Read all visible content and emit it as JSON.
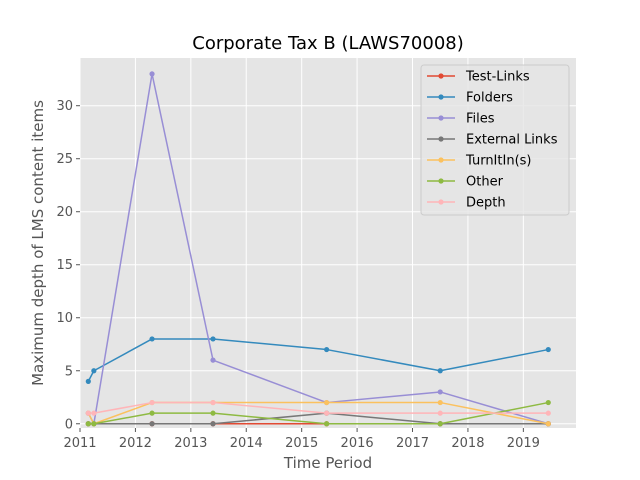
{
  "chart_data": {
    "type": "line",
    "title": "Corporate Tax B (LAWS70008)",
    "xlabel": "Time Period",
    "ylabel": "Maximum depth of LMS content items",
    "xlim": [
      2011.0,
      2019.95
    ],
    "ylim": [
      -0.4,
      34.5
    ],
    "xticks": [
      2011,
      2012,
      2013,
      2014,
      2015,
      2016,
      2017,
      2018,
      2019
    ],
    "yticks": [
      0,
      5,
      10,
      15,
      20,
      25,
      30
    ],
    "grid": true,
    "legend_position": "upper right",
    "x": [
      2011.15,
      2011.25,
      2012.3,
      2013.4,
      2015.45,
      2017.5,
      2019.45
    ],
    "series": [
      {
        "name": "Test-Links",
        "color": "#E24A33",
        "values": [
          0,
          0,
          0,
          0,
          0,
          0,
          0
        ]
      },
      {
        "name": "Folders",
        "color": "#348ABD",
        "values": [
          4,
          5,
          8,
          8,
          7,
          5,
          7
        ]
      },
      {
        "name": "Files",
        "color": "#988ED5",
        "values": [
          1,
          0,
          33,
          6,
          2,
          3,
          0
        ]
      },
      {
        "name": "External Links",
        "color": "#777777",
        "values": [
          0,
          0,
          0,
          0,
          1,
          0,
          0
        ]
      },
      {
        "name": "TurnItIn(s)",
        "color": "#FBC15E",
        "values": [
          1,
          0,
          2,
          2,
          2,
          2,
          0
        ]
      },
      {
        "name": "Other",
        "color": "#8EBA42",
        "values": [
          0,
          0,
          1,
          1,
          0,
          0,
          2
        ]
      },
      {
        "name": "Depth",
        "color": "#FFB5B8",
        "values": [
          1,
          1,
          2,
          2,
          1,
          1,
          1
        ]
      }
    ]
  }
}
